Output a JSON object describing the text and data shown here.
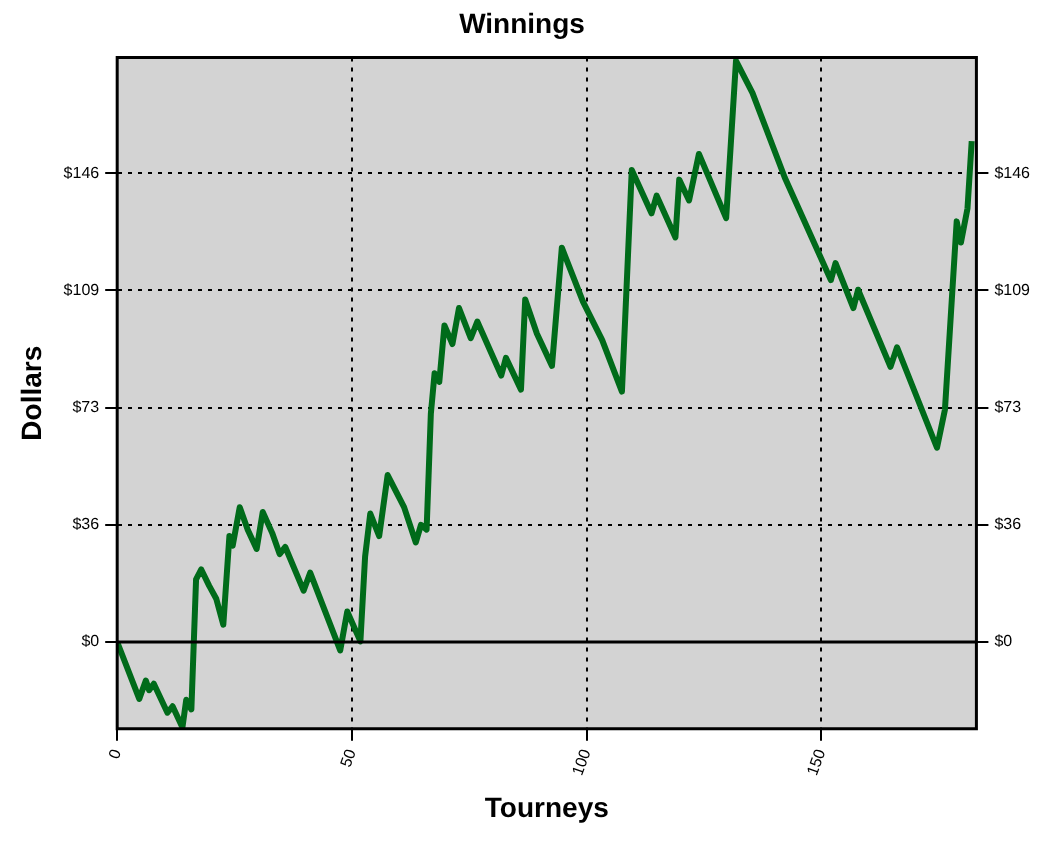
{
  "chart_data": {
    "type": "line",
    "title": "Winnings",
    "xlabel": "Tourneys",
    "ylabel": "Dollars",
    "x": [
      0,
      4.7,
      6.1,
      6.8,
      7.8,
      10.7,
      11.8,
      13.9,
      14.7,
      15.8,
      16.8,
      17.9,
      19.6,
      21.1,
      22.6,
      23.9,
      24.6,
      26.1,
      27.8,
      29.7,
      31,
      33,
      34.6,
      35.8,
      39.7,
      41.1,
      47.5,
      49,
      51.8,
      52.8,
      53.9,
      55.8,
      57.6,
      61.1,
      63.6,
      64.7,
      65.9,
      66.8,
      67.6,
      68.6,
      69.7,
      71.4,
      72.8,
      75.3,
      76.7,
      81.8,
      82.8,
      86,
      86.9,
      89.4,
      92.6,
      94.7,
      99.2,
      103.3,
      107.5,
      109.6,
      113.8,
      114.9,
      118.9,
      119.7,
      121.8,
      123.9,
      129.7,
      131.8,
      135.3,
      142.2,
      152,
      153,
      156.8,
      157.8,
      164.7,
      166.1,
      174.6,
      176.3,
      178.8,
      179.7,
      181.1,
      182
    ],
    "series": [
      {
        "color": "#006b1a",
        "values": [
          0,
          -17.7,
          -12,
          -15,
          -13,
          -22,
          -20,
          -26.6,
          -18,
          -21,
          19.5,
          22.6,
          17.5,
          13.5,
          5.4,
          33,
          30,
          42,
          35,
          29,
          40.5,
          34,
          27.4,
          29.6,
          16,
          21.6,
          -2.6,
          9.5,
          0.2,
          26.6,
          40,
          33,
          52,
          42,
          31,
          36.5,
          35,
          71,
          83.7,
          81,
          98.6,
          92.8,
          104,
          94.6,
          99.8,
          83,
          88.5,
          78.6,
          106.7,
          96,
          86,
          122.8,
          106,
          94,
          78,
          147,
          133.5,
          139,
          126,
          144,
          137.5,
          152,
          132,
          181,
          171,
          144.6,
          112.7,
          118,
          104,
          109.7,
          85.7,
          91.8,
          60.5,
          72.4,
          131,
          124.4,
          135,
          156
        ]
      }
    ],
    "xlim": [
      0,
      183
    ],
    "xticks": [
      0,
      50,
      100,
      150
    ],
    "ylim": [
      -27,
      182
    ],
    "yticks": [
      {
        "value": 0,
        "label": "$0"
      },
      {
        "value": 36.5,
        "label": "$36"
      },
      {
        "value": 73,
        "label": "$73"
      },
      {
        "value": 109.5,
        "label": "$109"
      },
      {
        "value": 146,
        "label": "$146"
      }
    ],
    "y2lim": [
      -27,
      182
    ],
    "y2ticks": [
      {
        "value": 0,
        "label": "$0"
      },
      {
        "value": 36.5,
        "label": "$36"
      },
      {
        "value": 73,
        "label": "$73"
      },
      {
        "value": 109.5,
        "label": "$109"
      },
      {
        "value": 146,
        "label": "$146"
      }
    ],
    "ref_lines": [
      {
        "axis": "y",
        "value": 0,
        "color": "#000000",
        "line_style": "solid"
      }
    ],
    "grid": true,
    "legend": false,
    "marker": "none",
    "line_style": "solid"
  }
}
